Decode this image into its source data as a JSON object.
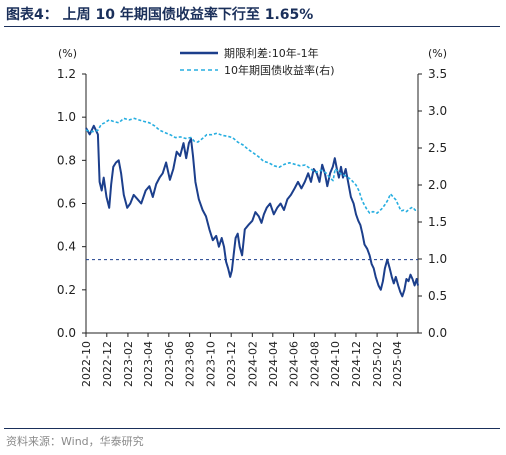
{
  "page": {
    "title": "图表4：  上周 10 年期国债收益率下行至 1.65%",
    "source": "资料来源：Wind，华泰研究"
  },
  "chart_data": {
    "type": "line",
    "left_axis": {
      "unit_label": "(%)",
      "ylim": [
        0.0,
        1.2
      ],
      "ticks": [
        "0.0",
        "0.2",
        "0.4",
        "0.6",
        "0.8",
        "1.0",
        "1.2"
      ]
    },
    "right_axis": {
      "unit_label": "(%)",
      "ylim": [
        0.0,
        3.5
      ],
      "ticks": [
        "0.0",
        "0.5",
        "1.0",
        "1.5",
        "2.0",
        "2.5",
        "3.0",
        "3.5"
      ]
    },
    "x_range": [
      "2022-10",
      "2025-06"
    ],
    "x_ticks": [
      "2022-10",
      "2022-12",
      "2023-02",
      "2023-04",
      "2023-06",
      "2023-08",
      "2023-10",
      "2023-12",
      "2024-02",
      "2024-04",
      "2024-06",
      "2024-08",
      "2024-10",
      "2024-12",
      "2025-02",
      "2025-04"
    ],
    "reference_line": {
      "axis": "left",
      "value": 0.34,
      "style": "dashed"
    },
    "legend_position": "top-center",
    "colors": {
      "spread": "#1c3f8c",
      "yield10": "#27aee0",
      "reference": "#1c3f8c",
      "title": "#1a2f5a"
    },
    "series": [
      {
        "name": "期限利差:10年-1年",
        "axis": "left",
        "style": "solid",
        "points": [
          [
            "2022-10-01",
            0.95
          ],
          [
            "2022-10-12",
            0.92
          ],
          [
            "2022-10-24",
            0.96
          ],
          [
            "2022-11-05",
            0.92
          ],
          [
            "2022-11-10",
            0.7
          ],
          [
            "2022-11-16",
            0.66
          ],
          [
            "2022-11-22",
            0.72
          ],
          [
            "2022-11-30",
            0.63
          ],
          [
            "2022-12-08",
            0.58
          ],
          [
            "2022-12-14",
            0.69
          ],
          [
            "2022-12-20",
            0.77
          ],
          [
            "2022-12-28",
            0.79
          ],
          [
            "2023-01-05",
            0.8
          ],
          [
            "2023-01-12",
            0.74
          ],
          [
            "2023-01-20",
            0.64
          ],
          [
            "2023-01-30",
            0.58
          ],
          [
            "2023-02-08",
            0.6
          ],
          [
            "2023-02-18",
            0.64
          ],
          [
            "2023-03-01",
            0.62
          ],
          [
            "2023-03-12",
            0.6
          ],
          [
            "2023-03-25",
            0.66
          ],
          [
            "2023-04-05",
            0.68
          ],
          [
            "2023-04-15",
            0.63
          ],
          [
            "2023-04-25",
            0.69
          ],
          [
            "2023-05-05",
            0.72
          ],
          [
            "2023-05-14",
            0.74
          ],
          [
            "2023-05-24",
            0.79
          ],
          [
            "2023-06-04",
            0.71
          ],
          [
            "2023-06-14",
            0.76
          ],
          [
            "2023-06-24",
            0.84
          ],
          [
            "2023-07-04",
            0.82
          ],
          [
            "2023-07-14",
            0.88
          ],
          [
            "2023-07-22",
            0.81
          ],
          [
            "2023-07-30",
            0.88
          ],
          [
            "2023-08-05",
            0.9
          ],
          [
            "2023-08-11",
            0.82
          ],
          [
            "2023-08-18",
            0.7
          ],
          [
            "2023-08-28",
            0.62
          ],
          [
            "2023-09-08",
            0.57
          ],
          [
            "2023-09-18",
            0.54
          ],
          [
            "2023-09-28",
            0.48
          ],
          [
            "2023-10-08",
            0.43
          ],
          [
            "2023-10-18",
            0.45
          ],
          [
            "2023-10-26",
            0.4
          ],
          [
            "2023-11-03",
            0.44
          ],
          [
            "2023-11-10",
            0.4
          ],
          [
            "2023-11-16",
            0.33
          ],
          [
            "2023-11-22",
            0.3
          ],
          [
            "2023-11-28",
            0.26
          ],
          [
            "2023-12-03",
            0.29
          ],
          [
            "2023-12-08",
            0.36
          ],
          [
            "2023-12-14",
            0.44
          ],
          [
            "2023-12-20",
            0.46
          ],
          [
            "2023-12-26",
            0.4
          ],
          [
            "2024-01-02",
            0.36
          ],
          [
            "2024-01-10",
            0.48
          ],
          [
            "2024-01-20",
            0.5
          ],
          [
            "2024-02-01",
            0.52
          ],
          [
            "2024-02-10",
            0.56
          ],
          [
            "2024-02-20",
            0.54
          ],
          [
            "2024-02-28",
            0.51
          ],
          [
            "2024-03-06",
            0.55
          ],
          [
            "2024-03-14",
            0.58
          ],
          [
            "2024-03-24",
            0.6
          ],
          [
            "2024-04-04",
            0.55
          ],
          [
            "2024-04-14",
            0.58
          ],
          [
            "2024-04-24",
            0.6
          ],
          [
            "2024-05-04",
            0.57
          ],
          [
            "2024-05-14",
            0.62
          ],
          [
            "2024-05-24",
            0.64
          ],
          [
            "2024-06-04",
            0.67
          ],
          [
            "2024-06-14",
            0.7
          ],
          [
            "2024-06-24",
            0.67
          ],
          [
            "2024-07-04",
            0.7
          ],
          [
            "2024-07-14",
            0.74
          ],
          [
            "2024-07-22",
            0.7
          ],
          [
            "2024-07-30",
            0.76
          ],
          [
            "2024-08-08",
            0.74
          ],
          [
            "2024-08-16",
            0.7
          ],
          [
            "2024-08-24",
            0.78
          ],
          [
            "2024-09-01",
            0.74
          ],
          [
            "2024-09-08",
            0.68
          ],
          [
            "2024-09-16",
            0.74
          ],
          [
            "2024-09-24",
            0.77
          ],
          [
            "2024-09-30",
            0.81
          ],
          [
            "2024-10-06",
            0.76
          ],
          [
            "2024-10-12",
            0.72
          ],
          [
            "2024-10-18",
            0.77
          ],
          [
            "2024-10-24",
            0.72
          ],
          [
            "2024-11-01",
            0.76
          ],
          [
            "2024-11-08",
            0.7
          ],
          [
            "2024-11-16",
            0.63
          ],
          [
            "2024-11-24",
            0.6
          ],
          [
            "2024-12-01",
            0.55
          ],
          [
            "2024-12-08",
            0.52
          ],
          [
            "2024-12-14",
            0.5
          ],
          [
            "2024-12-20",
            0.46
          ],
          [
            "2024-12-26",
            0.41
          ],
          [
            "2025-01-03",
            0.39
          ],
          [
            "2025-01-10",
            0.36
          ],
          [
            "2025-01-16",
            0.32
          ],
          [
            "2025-01-22",
            0.3
          ],
          [
            "2025-01-28",
            0.26
          ],
          [
            "2025-02-05",
            0.22
          ],
          [
            "2025-02-12",
            0.2
          ],
          [
            "2025-02-18",
            0.24
          ],
          [
            "2025-02-24",
            0.3
          ],
          [
            "2025-03-03",
            0.34
          ],
          [
            "2025-03-10",
            0.3
          ],
          [
            "2025-03-16",
            0.26
          ],
          [
            "2025-03-22",
            0.23
          ],
          [
            "2025-03-28",
            0.26
          ],
          [
            "2025-04-04",
            0.22
          ],
          [
            "2025-04-10",
            0.19
          ],
          [
            "2025-04-16",
            0.17
          ],
          [
            "2025-04-22",
            0.2
          ],
          [
            "2025-04-28",
            0.25
          ],
          [
            "2025-05-04",
            0.24
          ],
          [
            "2025-05-10",
            0.27
          ],
          [
            "2025-05-16",
            0.25
          ],
          [
            "2025-05-22",
            0.22
          ],
          [
            "2025-05-28",
            0.25
          ],
          [
            "2025-06-01",
            0.22
          ]
        ]
      },
      {
        "name": "10年期国债收益率(右)",
        "axis": "right",
        "style": "dashed",
        "points": [
          [
            "2022-10-01",
            2.74
          ],
          [
            "2022-10-20",
            2.72
          ],
          [
            "2022-11-05",
            2.74
          ],
          [
            "2022-11-15",
            2.82
          ],
          [
            "2022-11-25",
            2.84
          ],
          [
            "2022-12-08",
            2.88
          ],
          [
            "2022-12-20",
            2.86
          ],
          [
            "2023-01-05",
            2.84
          ],
          [
            "2023-01-20",
            2.9
          ],
          [
            "2023-02-05",
            2.88
          ],
          [
            "2023-02-20",
            2.9
          ],
          [
            "2023-03-05",
            2.88
          ],
          [
            "2023-03-20",
            2.86
          ],
          [
            "2023-04-05",
            2.84
          ],
          [
            "2023-04-20",
            2.8
          ],
          [
            "2023-05-05",
            2.74
          ],
          [
            "2023-05-20",
            2.71
          ],
          [
            "2023-06-05",
            2.68
          ],
          [
            "2023-06-20",
            2.64
          ],
          [
            "2023-07-05",
            2.65
          ],
          [
            "2023-07-20",
            2.63
          ],
          [
            "2023-08-05",
            2.64
          ],
          [
            "2023-08-15",
            2.59
          ],
          [
            "2023-08-25",
            2.58
          ],
          [
            "2023-09-08",
            2.63
          ],
          [
            "2023-09-20",
            2.68
          ],
          [
            "2023-10-05",
            2.68
          ],
          [
            "2023-10-20",
            2.7
          ],
          [
            "2023-11-05",
            2.67
          ],
          [
            "2023-11-20",
            2.66
          ],
          [
            "2023-12-05",
            2.64
          ],
          [
            "2023-12-20",
            2.58
          ],
          [
            "2024-01-05",
            2.54
          ],
          [
            "2024-01-20",
            2.48
          ],
          [
            "2024-02-05",
            2.43
          ],
          [
            "2024-02-20",
            2.38
          ],
          [
            "2024-03-05",
            2.32
          ],
          [
            "2024-03-20",
            2.3
          ],
          [
            "2024-04-05",
            2.26
          ],
          [
            "2024-04-20",
            2.24
          ],
          [
            "2024-05-05",
            2.28
          ],
          [
            "2024-05-20",
            2.3
          ],
          [
            "2024-06-05",
            2.28
          ],
          [
            "2024-06-20",
            2.26
          ],
          [
            "2024-07-05",
            2.27
          ],
          [
            "2024-07-20",
            2.22
          ],
          [
            "2024-08-05",
            2.17
          ],
          [
            "2024-08-20",
            2.2
          ],
          [
            "2024-09-05",
            2.16
          ],
          [
            "2024-09-15",
            2.1
          ],
          [
            "2024-09-25",
            2.06
          ],
          [
            "2024-10-01",
            2.22
          ],
          [
            "2024-10-15",
            2.16
          ],
          [
            "2024-11-01",
            2.12
          ],
          [
            "2024-11-15",
            2.08
          ],
          [
            "2024-12-01",
            2.0
          ],
          [
            "2024-12-10",
            1.92
          ],
          [
            "2024-12-20",
            1.78
          ],
          [
            "2025-01-01",
            1.68
          ],
          [
            "2025-01-10",
            1.62
          ],
          [
            "2025-01-20",
            1.64
          ],
          [
            "2025-02-01",
            1.62
          ],
          [
            "2025-02-15",
            1.68
          ],
          [
            "2025-02-25",
            1.74
          ],
          [
            "2025-03-05",
            1.8
          ],
          [
            "2025-03-12",
            1.88
          ],
          [
            "2025-03-20",
            1.84
          ],
          [
            "2025-03-28",
            1.8
          ],
          [
            "2025-04-05",
            1.72
          ],
          [
            "2025-04-12",
            1.65
          ],
          [
            "2025-04-20",
            1.66
          ],
          [
            "2025-04-28",
            1.64
          ],
          [
            "2025-05-08",
            1.68
          ],
          [
            "2025-05-16",
            1.7
          ],
          [
            "2025-05-24",
            1.66
          ],
          [
            "2025-06-01",
            1.67
          ]
        ]
      }
    ]
  }
}
